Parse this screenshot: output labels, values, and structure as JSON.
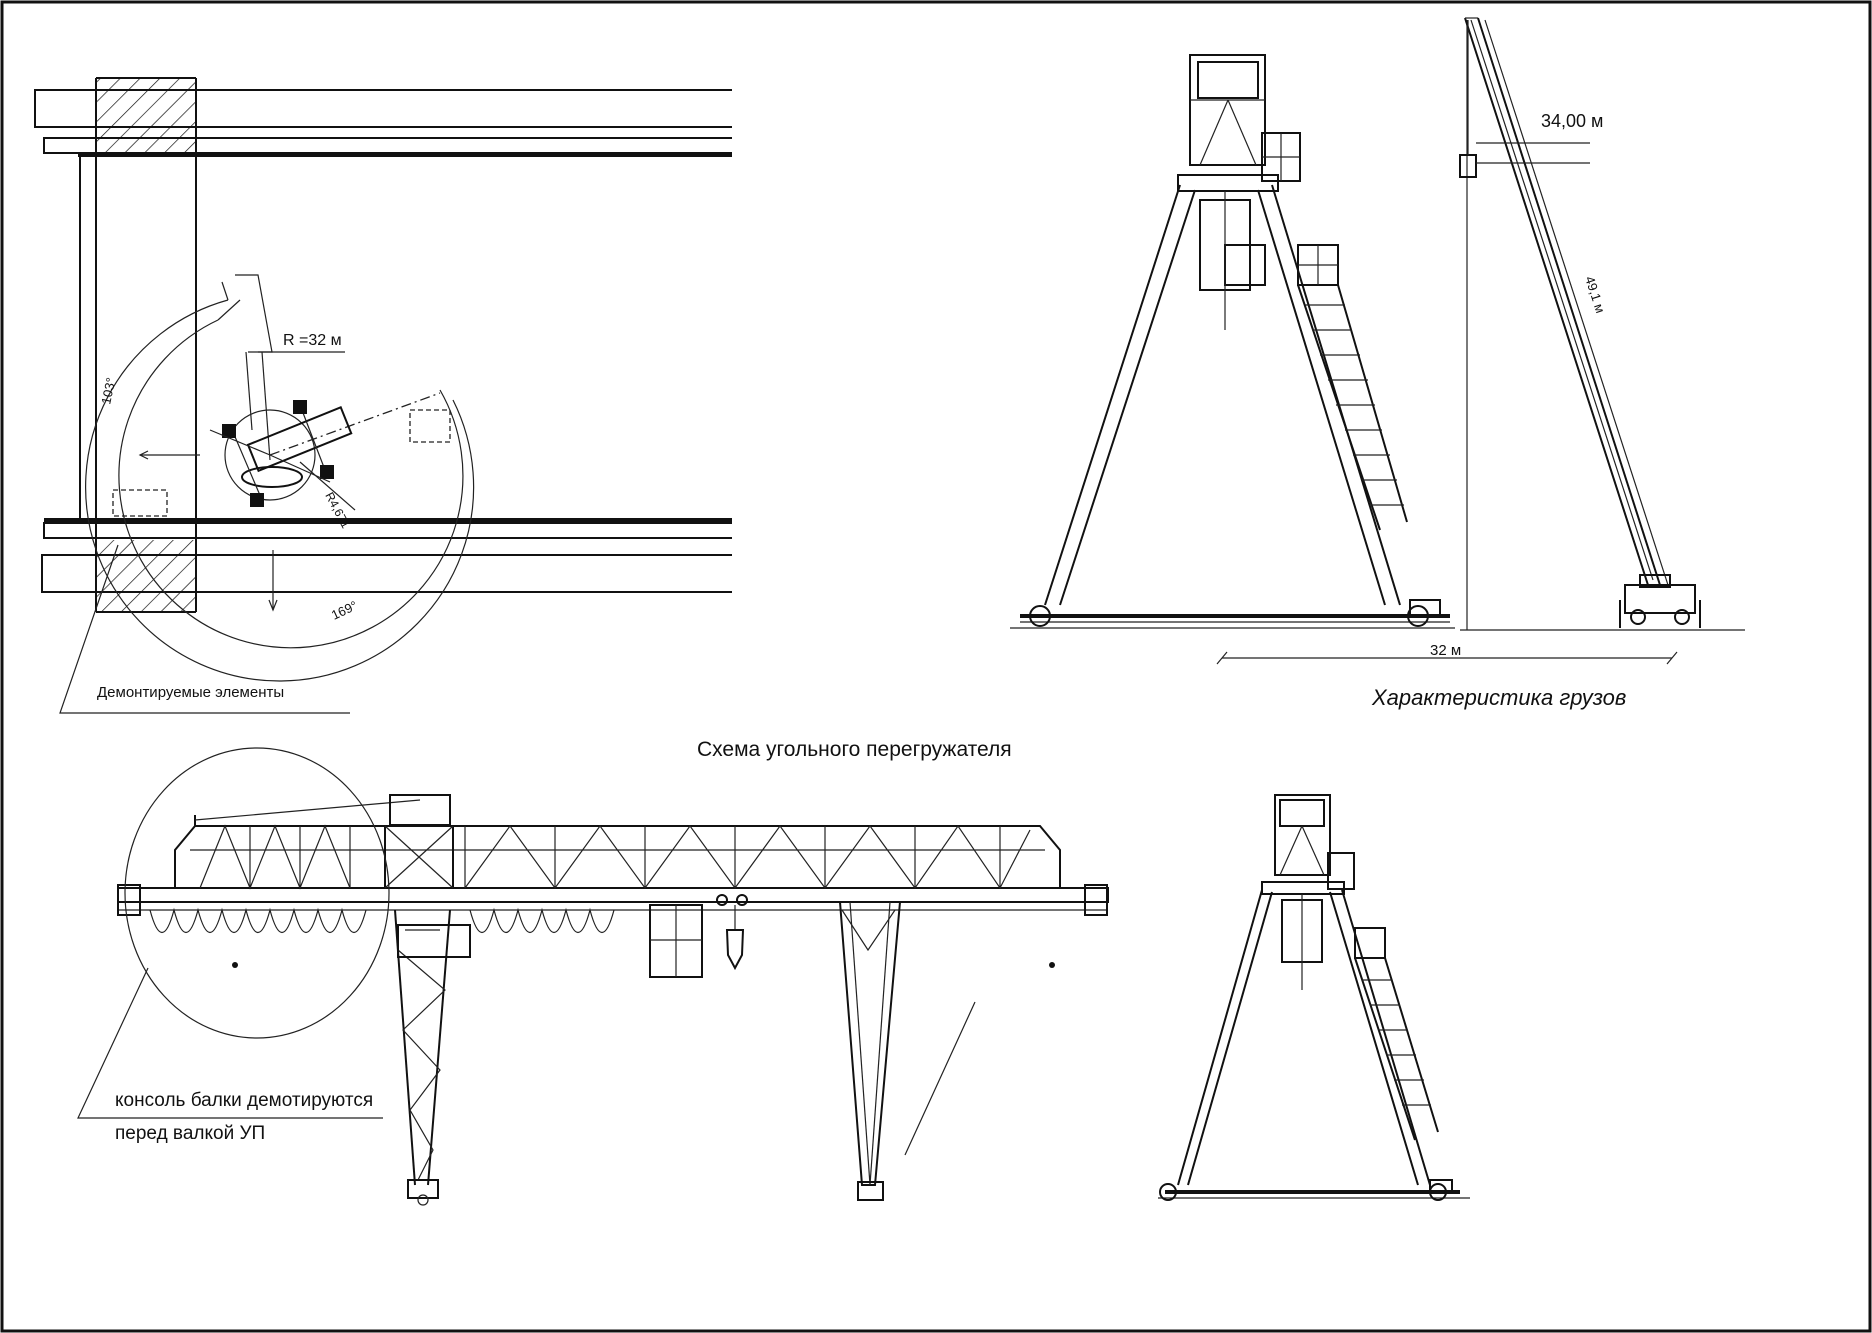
{
  "labels": {
    "radius": "R =32 м",
    "angle_103": "103°",
    "angle_169": "169°",
    "radius_small": "R4,671",
    "dismantled": "Демонтируемые элементы",
    "height_34": "34,00  м",
    "boom_length": "49,1 м",
    "span_32": "32 м",
    "load_characteristics": "Характеристика грузов",
    "scheme_title": "Схема  угольного  перегружателя",
    "console_line1": "консоль  балки  демотируются",
    "console_line2": "перед  валкой  УП"
  },
  "colors": {
    "ink": "#111111",
    "background": "#ffffff"
  }
}
